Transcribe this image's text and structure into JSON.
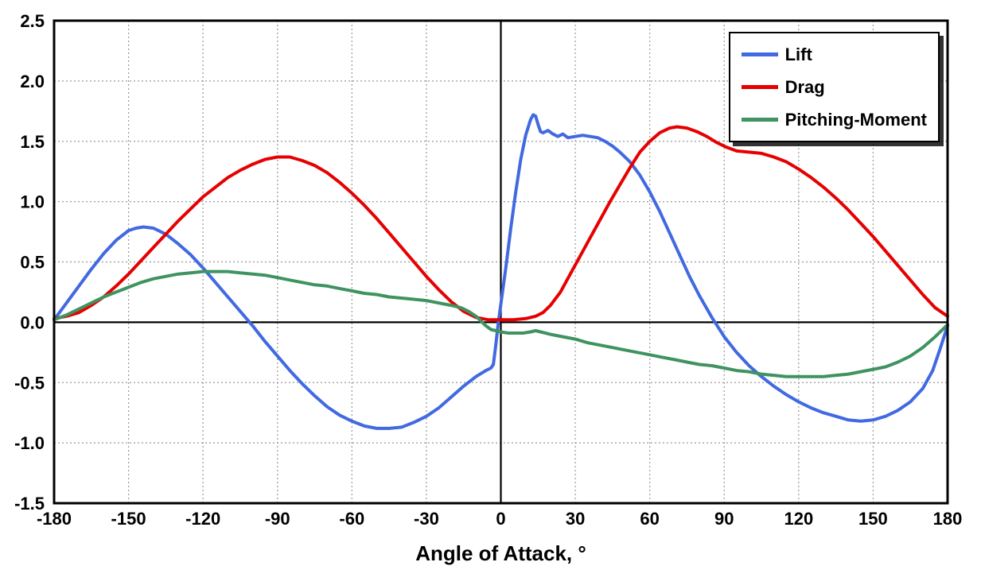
{
  "chart_data": {
    "type": "line",
    "title": "",
    "xlabel": "Angle of Attack, °",
    "ylabel": "",
    "xlim": [
      -180,
      180
    ],
    "ylim": [
      -1.5,
      2.5
    ],
    "x_ticks": [
      "-180",
      "-150",
      "-120",
      "-90",
      "-60",
      "-30",
      "0",
      "30",
      "60",
      "90",
      "120",
      "150",
      "180"
    ],
    "y_ticks": [
      "-1.5",
      "-1.0",
      "-0.5",
      "0.0",
      "0.5",
      "1.0",
      "1.5",
      "2.0",
      "2.5"
    ],
    "grid": true,
    "legend_position": "top-right",
    "series": [
      {
        "name": "Lift",
        "color": "#4169E1",
        "points": [
          [
            -180,
            0.02
          ],
          [
            -175,
            0.16
          ],
          [
            -170,
            0.3
          ],
          [
            -165,
            0.44
          ],
          [
            -160,
            0.57
          ],
          [
            -155,
            0.68
          ],
          [
            -150,
            0.76
          ],
          [
            -147,
            0.78
          ],
          [
            -144,
            0.79
          ],
          [
            -140,
            0.78
          ],
          [
            -135,
            0.73
          ],
          [
            -130,
            0.65
          ],
          [
            -125,
            0.56
          ],
          [
            -120,
            0.45
          ],
          [
            -115,
            0.33
          ],
          [
            -110,
            0.21
          ],
          [
            -105,
            0.09
          ],
          [
            -100,
            -0.03
          ],
          [
            -95,
            -0.16
          ],
          [
            -90,
            -0.28
          ],
          [
            -85,
            -0.4
          ],
          [
            -80,
            -0.51
          ],
          [
            -75,
            -0.61
          ],
          [
            -70,
            -0.7
          ],
          [
            -65,
            -0.77
          ],
          [
            -60,
            -0.82
          ],
          [
            -55,
            -0.86
          ],
          [
            -50,
            -0.88
          ],
          [
            -45,
            -0.88
          ],
          [
            -40,
            -0.87
          ],
          [
            -35,
            -0.83
          ],
          [
            -30,
            -0.78
          ],
          [
            -25,
            -0.71
          ],
          [
            -20,
            -0.62
          ],
          [
            -15,
            -0.53
          ],
          [
            -10,
            -0.45
          ],
          [
            -6,
            -0.4
          ],
          [
            -4,
            -0.38
          ],
          [
            -3,
            -0.35
          ],
          [
            -2,
            -0.18
          ],
          [
            -1,
            0.0
          ],
          [
            0,
            0.15
          ],
          [
            2,
            0.45
          ],
          [
            4,
            0.78
          ],
          [
            6,
            1.08
          ],
          [
            8,
            1.35
          ],
          [
            10,
            1.55
          ],
          [
            12,
            1.68
          ],
          [
            13,
            1.72
          ],
          [
            14,
            1.71
          ],
          [
            15,
            1.64
          ],
          [
            16,
            1.58
          ],
          [
            17,
            1.57
          ],
          [
            19,
            1.59
          ],
          [
            21,
            1.56
          ],
          [
            23,
            1.54
          ],
          [
            25,
            1.56
          ],
          [
            27,
            1.53
          ],
          [
            30,
            1.54
          ],
          [
            33,
            1.55
          ],
          [
            36,
            1.54
          ],
          [
            39,
            1.53
          ],
          [
            42,
            1.5
          ],
          [
            45,
            1.46
          ],
          [
            48,
            1.41
          ],
          [
            52,
            1.33
          ],
          [
            56,
            1.22
          ],
          [
            60,
            1.08
          ],
          [
            64,
            0.92
          ],
          [
            68,
            0.74
          ],
          [
            72,
            0.56
          ],
          [
            76,
            0.38
          ],
          [
            80,
            0.22
          ],
          [
            85,
            0.04
          ],
          [
            90,
            -0.12
          ],
          [
            95,
            -0.25
          ],
          [
            100,
            -0.36
          ],
          [
            105,
            -0.45
          ],
          [
            110,
            -0.53
          ],
          [
            115,
            -0.6
          ],
          [
            120,
            -0.66
          ],
          [
            125,
            -0.71
          ],
          [
            130,
            -0.75
          ],
          [
            135,
            -0.78
          ],
          [
            140,
            -0.81
          ],
          [
            145,
            -0.82
          ],
          [
            150,
            -0.81
          ],
          [
            155,
            -0.78
          ],
          [
            160,
            -0.73
          ],
          [
            165,
            -0.66
          ],
          [
            170,
            -0.55
          ],
          [
            174,
            -0.4
          ],
          [
            177,
            -0.22
          ],
          [
            180,
            -0.03
          ]
        ]
      },
      {
        "name": "Drag",
        "color": "#E60000",
        "points": [
          [
            -180,
            0.03
          ],
          [
            -175,
            0.05
          ],
          [
            -170,
            0.08
          ],
          [
            -165,
            0.14
          ],
          [
            -160,
            0.21
          ],
          [
            -155,
            0.3
          ],
          [
            -150,
            0.4
          ],
          [
            -145,
            0.51
          ],
          [
            -140,
            0.62
          ],
          [
            -135,
            0.73
          ],
          [
            -130,
            0.84
          ],
          [
            -125,
            0.94
          ],
          [
            -120,
            1.04
          ],
          [
            -115,
            1.12
          ],
          [
            -110,
            1.2
          ],
          [
            -105,
            1.26
          ],
          [
            -100,
            1.31
          ],
          [
            -95,
            1.35
          ],
          [
            -90,
            1.37
          ],
          [
            -85,
            1.37
          ],
          [
            -80,
            1.34
          ],
          [
            -75,
            1.3
          ],
          [
            -70,
            1.24
          ],
          [
            -65,
            1.16
          ],
          [
            -60,
            1.07
          ],
          [
            -55,
            0.97
          ],
          [
            -50,
            0.86
          ],
          [
            -45,
            0.74
          ],
          [
            -40,
            0.62
          ],
          [
            -35,
            0.5
          ],
          [
            -30,
            0.38
          ],
          [
            -25,
            0.27
          ],
          [
            -20,
            0.17
          ],
          [
            -15,
            0.09
          ],
          [
            -10,
            0.04
          ],
          [
            -5,
            0.02
          ],
          [
            0,
            0.02
          ],
          [
            5,
            0.02
          ],
          [
            10,
            0.03
          ],
          [
            14,
            0.05
          ],
          [
            17,
            0.08
          ],
          [
            20,
            0.14
          ],
          [
            24,
            0.25
          ],
          [
            28,
            0.4
          ],
          [
            32,
            0.55
          ],
          [
            36,
            0.7
          ],
          [
            40,
            0.85
          ],
          [
            44,
            1.0
          ],
          [
            48,
            1.14
          ],
          [
            52,
            1.28
          ],
          [
            56,
            1.41
          ],
          [
            60,
            1.5
          ],
          [
            64,
            1.57
          ],
          [
            68,
            1.61
          ],
          [
            71,
            1.62
          ],
          [
            75,
            1.61
          ],
          [
            79,
            1.58
          ],
          [
            83,
            1.54
          ],
          [
            87,
            1.49
          ],
          [
            91,
            1.45
          ],
          [
            95,
            1.42
          ],
          [
            100,
            1.41
          ],
          [
            105,
            1.4
          ],
          [
            110,
            1.37
          ],
          [
            115,
            1.33
          ],
          [
            120,
            1.27
          ],
          [
            125,
            1.2
          ],
          [
            130,
            1.12
          ],
          [
            135,
            1.03
          ],
          [
            140,
            0.93
          ],
          [
            145,
            0.82
          ],
          [
            150,
            0.71
          ],
          [
            155,
            0.59
          ],
          [
            160,
            0.47
          ],
          [
            165,
            0.35
          ],
          [
            170,
            0.23
          ],
          [
            175,
            0.12
          ],
          [
            180,
            0.05
          ]
        ]
      },
      {
        "name": "Pitching-Moment",
        "color": "#3F9360",
        "points": [
          [
            -180,
            0.02
          ],
          [
            -175,
            0.06
          ],
          [
            -170,
            0.11
          ],
          [
            -165,
            0.16
          ],
          [
            -160,
            0.21
          ],
          [
            -155,
            0.25
          ],
          [
            -150,
            0.29
          ],
          [
            -145,
            0.33
          ],
          [
            -140,
            0.36
          ],
          [
            -135,
            0.38
          ],
          [
            -130,
            0.4
          ],
          [
            -125,
            0.41
          ],
          [
            -120,
            0.42
          ],
          [
            -115,
            0.42
          ],
          [
            -110,
            0.42
          ],
          [
            -105,
            0.41
          ],
          [
            -100,
            0.4
          ],
          [
            -95,
            0.39
          ],
          [
            -90,
            0.37
          ],
          [
            -85,
            0.35
          ],
          [
            -80,
            0.33
          ],
          [
            -75,
            0.31
          ],
          [
            -70,
            0.3
          ],
          [
            -65,
            0.28
          ],
          [
            -60,
            0.26
          ],
          [
            -55,
            0.24
          ],
          [
            -50,
            0.23
          ],
          [
            -45,
            0.21
          ],
          [
            -40,
            0.2
          ],
          [
            -35,
            0.19
          ],
          [
            -30,
            0.18
          ],
          [
            -25,
            0.16
          ],
          [
            -20,
            0.14
          ],
          [
            -16,
            0.12
          ],
          [
            -13,
            0.09
          ],
          [
            -10,
            0.05
          ],
          [
            -8,
            0.01
          ],
          [
            -6,
            -0.03
          ],
          [
            -4,
            -0.06
          ],
          [
            -2,
            -0.07
          ],
          [
            0,
            -0.08
          ],
          [
            3,
            -0.09
          ],
          [
            6,
            -0.09
          ],
          [
            9,
            -0.09
          ],
          [
            12,
            -0.08
          ],
          [
            14,
            -0.07
          ],
          [
            16,
            -0.08
          ],
          [
            18,
            -0.09
          ],
          [
            20,
            -0.1
          ],
          [
            25,
            -0.12
          ],
          [
            30,
            -0.14
          ],
          [
            35,
            -0.17
          ],
          [
            40,
            -0.19
          ],
          [
            45,
            -0.21
          ],
          [
            50,
            -0.23
          ],
          [
            55,
            -0.25
          ],
          [
            60,
            -0.27
          ],
          [
            65,
            -0.29
          ],
          [
            70,
            -0.31
          ],
          [
            75,
            -0.33
          ],
          [
            80,
            -0.35
          ],
          [
            85,
            -0.36
          ],
          [
            90,
            -0.38
          ],
          [
            95,
            -0.4
          ],
          [
            100,
            -0.41
          ],
          [
            105,
            -0.43
          ],
          [
            110,
            -0.44
          ],
          [
            115,
            -0.45
          ],
          [
            120,
            -0.45
          ],
          [
            125,
            -0.45
          ],
          [
            130,
            -0.45
          ],
          [
            135,
            -0.44
          ],
          [
            140,
            -0.43
          ],
          [
            145,
            -0.41
          ],
          [
            150,
            -0.39
          ],
          [
            155,
            -0.37
          ],
          [
            160,
            -0.33
          ],
          [
            165,
            -0.28
          ],
          [
            170,
            -0.21
          ],
          [
            175,
            -0.12
          ],
          [
            180,
            -0.02
          ]
        ]
      }
    ]
  }
}
